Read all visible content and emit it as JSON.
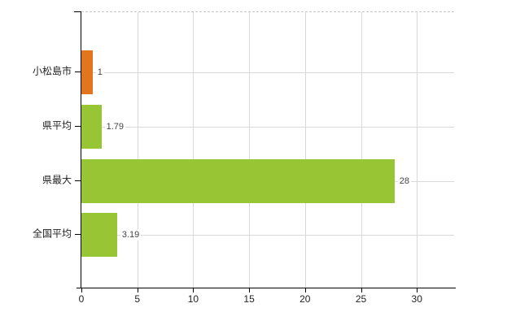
{
  "chart_data": {
    "type": "bar",
    "orientation": "horizontal",
    "title": "",
    "xlabel": "",
    "ylabel": "",
    "categories": [
      "小松島市",
      "県平均",
      "県最大",
      "全国平均"
    ],
    "values": [
      1,
      1.79,
      28,
      3.19
    ],
    "value_labels": [
      "1",
      "1.79",
      "28",
      "3.19"
    ],
    "bar_colors": [
      "#e2761f",
      "#98c533",
      "#98c533",
      "#98c533"
    ],
    "xticks": [
      0,
      5,
      10,
      15,
      20,
      25,
      30
    ],
    "xtick_labels": [
      "0",
      "5",
      "10",
      "15",
      "20",
      "25",
      "30"
    ],
    "xlim": [
      0,
      33.33
    ],
    "grid": "on",
    "legend": "none"
  },
  "colors": {
    "bar_orange": "#e2761f",
    "bar_green": "#98c533",
    "gridline": "#d9d9d9",
    "axis": "#000000",
    "label_text": "#222222",
    "value_text": "#444444",
    "background": "#ffffff"
  }
}
